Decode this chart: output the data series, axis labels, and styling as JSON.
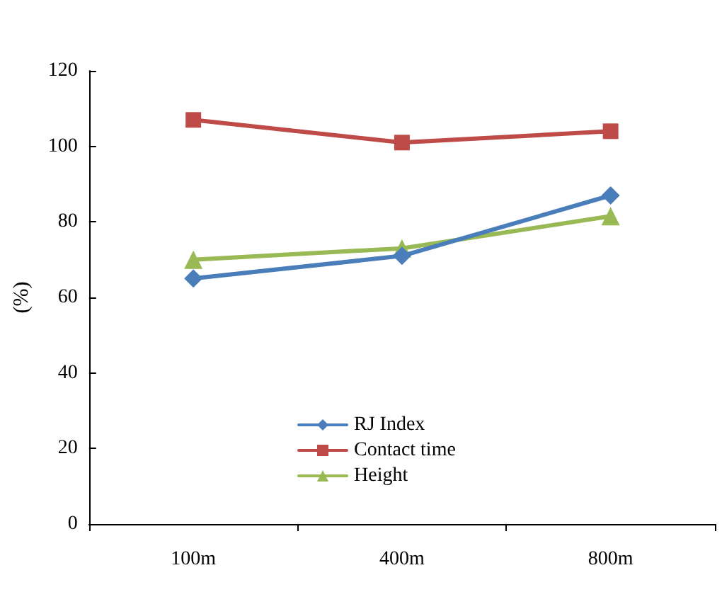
{
  "chart_data": {
    "type": "line",
    "ylabel": "(%)",
    "categories": [
      "100m",
      "400m",
      "800m"
    ],
    "series": [
      {
        "name": "RJ Index",
        "color": "#4a7ebb",
        "marker": "diamond",
        "values": [
          65,
          71,
          87
        ]
      },
      {
        "name": "Contact time",
        "color": "#be4b48",
        "marker": "square",
        "values": [
          107,
          101,
          104
        ]
      },
      {
        "name": "Height",
        "color": "#98b954",
        "marker": "triangle",
        "values": [
          70,
          73,
          81.5
        ]
      }
    ],
    "ylim": [
      0,
      120
    ],
    "yticks": [
      0,
      20,
      40,
      60,
      80,
      100,
      120
    ],
    "grid": false,
    "legend": "bottom",
    "line_style": "solid"
  }
}
